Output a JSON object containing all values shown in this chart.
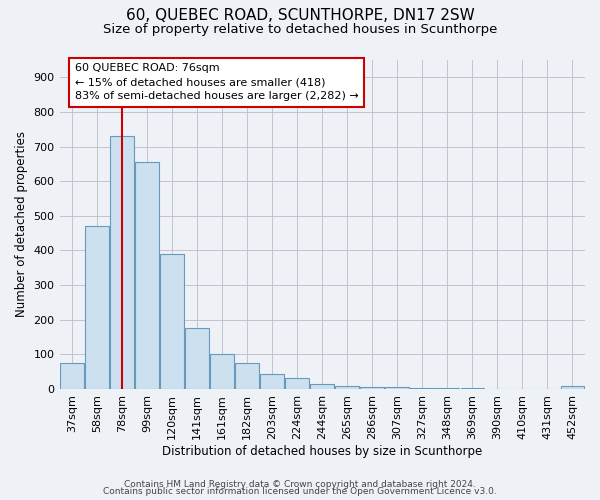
{
  "title": "60, QUEBEC ROAD, SCUNTHORPE, DN17 2SW",
  "subtitle": "Size of property relative to detached houses in Scunthorpe",
  "xlabel": "Distribution of detached houses by size in Scunthorpe",
  "ylabel": "Number of detached properties",
  "footnote1": "Contains HM Land Registry data © Crown copyright and database right 2024.",
  "footnote2": "Contains public sector information licensed under the Open Government Licence v3.0.",
  "bar_labels": [
    "37sqm",
    "58sqm",
    "78sqm",
    "99sqm",
    "120sqm",
    "141sqm",
    "161sqm",
    "182sqm",
    "203sqm",
    "224sqm",
    "244sqm",
    "265sqm",
    "286sqm",
    "307sqm",
    "327sqm",
    "348sqm",
    "369sqm",
    "390sqm",
    "410sqm",
    "431sqm",
    "452sqm"
  ],
  "bar_values": [
    75,
    470,
    730,
    655,
    390,
    175,
    100,
    75,
    43,
    32,
    13,
    8,
    5,
    5,
    3,
    2,
    2,
    0,
    0,
    0,
    8
  ],
  "bar_color": "#cce0f0",
  "bar_edge_color": "#6699bb",
  "reference_line_x": 2,
  "annotation_text": "60 QUEBEC ROAD: 76sqm\n← 15% of detached houses are smaller (418)\n83% of semi-detached houses are larger (2,282) →",
  "annotation_box_color": "#ffffff",
  "annotation_box_edge": "#cc0000",
  "ref_line_color": "#cc0000",
  "ylim": [
    0,
    950
  ],
  "yticks": [
    0,
    100,
    200,
    300,
    400,
    500,
    600,
    700,
    800,
    900
  ],
  "bg_color": "#eef2f7",
  "grid_color": "#bbbbcc",
  "title_fontsize": 11,
  "subtitle_fontsize": 9.5,
  "axis_label_fontsize": 8.5,
  "tick_fontsize": 8,
  "annot_fontsize": 8,
  "footnote_fontsize": 6.5
}
